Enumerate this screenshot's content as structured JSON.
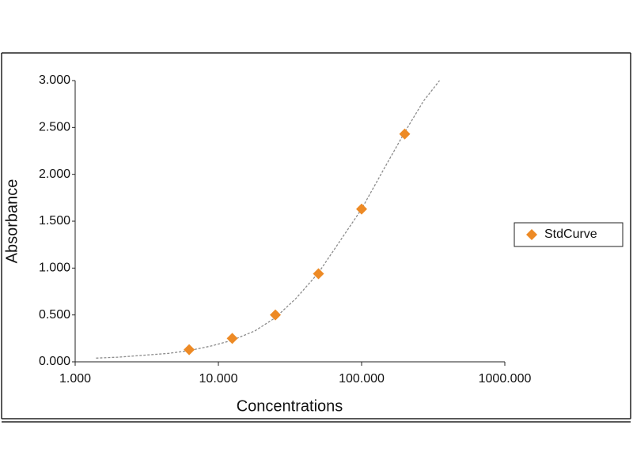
{
  "chart_data": {
    "type": "scatter",
    "xlabel": "Concentrations",
    "ylabel": "Absorbance",
    "xscale": "log",
    "xlim": [
      1,
      1000
    ],
    "ylim": [
      0,
      3
    ],
    "xticks": [
      {
        "value": 1,
        "label": "1.000"
      },
      {
        "value": 10,
        "label": "10.000"
      },
      {
        "value": 100,
        "label": "100.000"
      },
      {
        "value": 1000,
        "label": "1000.000"
      }
    ],
    "yticks": [
      {
        "value": 0,
        "label": "0.000"
      },
      {
        "value": 0.5,
        "label": "0.500"
      },
      {
        "value": 1,
        "label": "1.000"
      },
      {
        "value": 1.5,
        "label": "1.500"
      },
      {
        "value": 2,
        "label": "2.000"
      },
      {
        "value": 2.5,
        "label": "2.500"
      },
      {
        "value": 3,
        "label": "3.000"
      }
    ],
    "grid": false,
    "legend": "right",
    "series": [
      {
        "name": "StdCurve",
        "color": "#ed8a25",
        "marker": "diamond",
        "x": [
          6.25,
          12.5,
          25,
          50,
          100,
          200
        ],
        "values": [
          0.13,
          0.25,
          0.5,
          0.94,
          1.63,
          2.43
        ]
      }
    ],
    "trendline": {
      "color": "#8c8c8c",
      "dashed": true,
      "x": [
        1.4,
        2,
        3,
        4.5,
        6.25,
        9,
        12.5,
        18,
        25,
        35,
        50,
        70,
        100,
        140,
        200,
        270,
        350
      ],
      "values": [
        0.04,
        0.05,
        0.07,
        0.09,
        0.12,
        0.17,
        0.23,
        0.33,
        0.47,
        0.68,
        0.95,
        1.28,
        1.63,
        2.03,
        2.45,
        2.78,
        3.0
      ]
    }
  }
}
